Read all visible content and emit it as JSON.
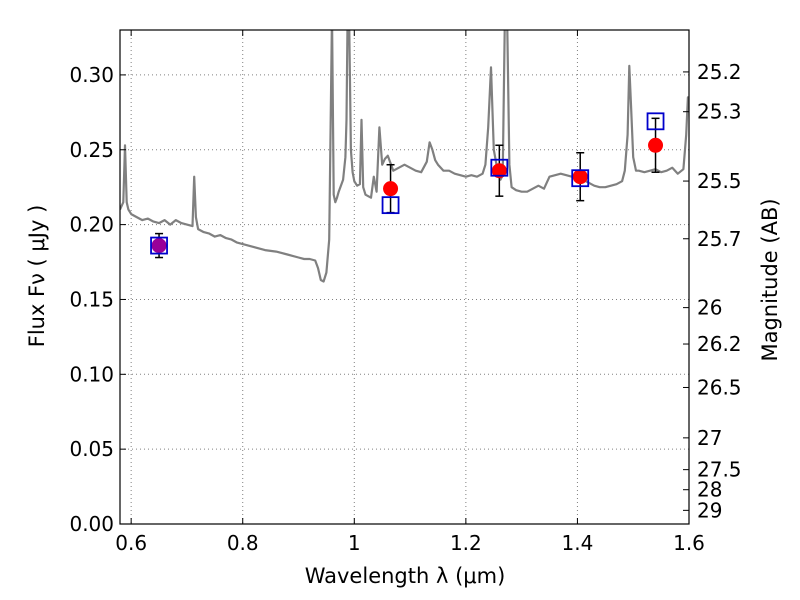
{
  "chart_data": {
    "type": "scatter",
    "xlabel": "Wavelength  λ (μm)",
    "ylabel": "Flux  Fν  ( μJy )",
    "y2label": "Magnitude (AB)",
    "xlim": [
      0.58,
      1.6
    ],
    "ylim": [
      0.0,
      0.33
    ],
    "grid": true,
    "x_ticks": [
      "0.6",
      "0.8",
      "1",
      "1.2",
      "1.4",
      "1.6"
    ],
    "x_tick_values": [
      0.6,
      0.8,
      1.0,
      1.2,
      1.4,
      1.6
    ],
    "y_ticks": [
      "0.00",
      "0.05",
      "0.10",
      "0.15",
      "0.20",
      "0.25",
      "0.30"
    ],
    "y_tick_values": [
      0.0,
      0.05,
      0.1,
      0.15,
      0.2,
      0.25,
      0.3
    ],
    "magnitude_ticks": [
      "25.2",
      "25.3",
      "25.5",
      "25.7",
      "26",
      "26.2",
      "26.5",
      "27",
      "27.5",
      "28",
      "29"
    ],
    "magnitude_tick_values": [
      25.2,
      25.3,
      25.5,
      25.7,
      26.0,
      26.2,
      26.5,
      27.0,
      27.5,
      28.0,
      29.0
    ],
    "colors": {
      "spectrum": "#808080",
      "observed": "#ff0000",
      "model": "#0000cc",
      "overlap": "#990099",
      "errorbar": "#000000",
      "grid": "#808080"
    },
    "series": [
      {
        "name": "observed",
        "marker": "circle",
        "x": [
          0.65,
          1.065,
          1.26,
          1.405,
          1.54
        ],
        "y": [
          0.186,
          0.224,
          0.236,
          0.232,
          0.253
        ],
        "yerr": [
          0.008,
          0.016,
          0.017,
          0.016,
          0.018
        ]
      },
      {
        "name": "model",
        "marker": "square",
        "x": [
          0.65,
          1.065,
          1.26,
          1.405,
          1.54
        ],
        "y": [
          0.186,
          0.213,
          0.238,
          0.231,
          0.269
        ]
      }
    ],
    "spectrum": {
      "name": "model spectrum",
      "x": [
        0.58,
        0.586,
        0.589,
        0.592,
        0.595,
        0.6,
        0.61,
        0.62,
        0.63,
        0.64,
        0.65,
        0.66,
        0.67,
        0.68,
        0.69,
        0.7,
        0.71,
        0.713,
        0.716,
        0.72,
        0.73,
        0.74,
        0.75,
        0.76,
        0.77,
        0.78,
        0.79,
        0.8,
        0.82,
        0.84,
        0.86,
        0.88,
        0.9,
        0.91,
        0.92,
        0.93,
        0.935,
        0.94,
        0.945,
        0.95,
        0.955,
        0.96,
        0.963,
        0.966,
        0.969,
        0.972,
        0.976,
        0.98,
        0.984,
        0.986,
        0.988,
        0.991,
        0.994,
        0.997,
        1.0,
        1.005,
        1.01,
        1.013,
        1.016,
        1.02,
        1.03,
        1.035,
        1.04,
        1.045,
        1.05,
        1.055,
        1.06,
        1.07,
        1.08,
        1.09,
        1.1,
        1.11,
        1.12,
        1.13,
        1.135,
        1.14,
        1.145,
        1.15,
        1.16,
        1.17,
        1.18,
        1.19,
        1.2,
        1.21,
        1.22,
        1.23,
        1.235,
        1.24,
        1.245,
        1.25,
        1.255,
        1.258,
        1.262,
        1.266,
        1.27,
        1.274,
        1.278,
        1.282,
        1.29,
        1.3,
        1.31,
        1.32,
        1.33,
        1.34,
        1.35,
        1.36,
        1.37,
        1.38,
        1.39,
        1.4,
        1.41,
        1.42,
        1.43,
        1.44,
        1.45,
        1.46,
        1.47,
        1.48,
        1.485,
        1.49,
        1.493,
        1.496,
        1.5,
        1.505,
        1.51,
        1.52,
        1.53,
        1.54,
        1.55,
        1.56,
        1.57,
        1.58,
        1.59,
        1.595,
        1.598,
        1.6
      ],
      "y": [
        0.21,
        0.215,
        0.253,
        0.215,
        0.21,
        0.207,
        0.205,
        0.203,
        0.204,
        0.202,
        0.201,
        0.203,
        0.2,
        0.203,
        0.201,
        0.2,
        0.199,
        0.232,
        0.205,
        0.197,
        0.195,
        0.194,
        0.192,
        0.193,
        0.191,
        0.19,
        0.188,
        0.187,
        0.185,
        0.183,
        0.182,
        0.18,
        0.178,
        0.177,
        0.177,
        0.176,
        0.171,
        0.163,
        0.162,
        0.168,
        0.19,
        0.34,
        0.22,
        0.215,
        0.218,
        0.222,
        0.226,
        0.23,
        0.245,
        0.27,
        0.34,
        0.33,
        0.25,
        0.235,
        0.229,
        0.226,
        0.227,
        0.27,
        0.225,
        0.22,
        0.218,
        0.232,
        0.222,
        0.265,
        0.24,
        0.244,
        0.246,
        0.236,
        0.238,
        0.24,
        0.238,
        0.236,
        0.235,
        0.242,
        0.255,
        0.25,
        0.243,
        0.24,
        0.236,
        0.236,
        0.234,
        0.233,
        0.232,
        0.233,
        0.232,
        0.234,
        0.24,
        0.265,
        0.305,
        0.25,
        0.24,
        0.235,
        0.23,
        0.233,
        0.34,
        0.34,
        0.24,
        0.225,
        0.223,
        0.222,
        0.222,
        0.224,
        0.226,
        0.224,
        0.232,
        0.233,
        0.234,
        0.233,
        0.232,
        0.231,
        0.23,
        0.228,
        0.226,
        0.225,
        0.225,
        0.226,
        0.227,
        0.229,
        0.236,
        0.26,
        0.306,
        0.28,
        0.245,
        0.236,
        0.236,
        0.235,
        0.236,
        0.237,
        0.235,
        0.236,
        0.238,
        0.234,
        0.237,
        0.26,
        0.285,
        0.285
      ]
    }
  }
}
